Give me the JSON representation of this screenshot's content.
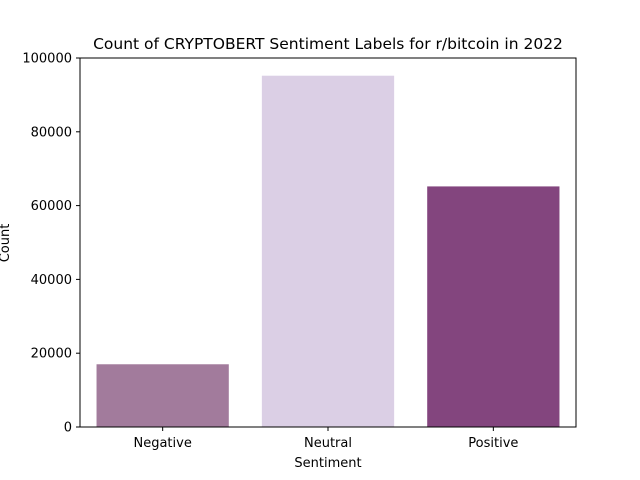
{
  "chart_data": {
    "type": "bar",
    "title": "Count of CRYPTOBERT Sentiment Labels for r/bitcoin in 2022",
    "xlabel": "Sentiment",
    "ylabel": "Count",
    "categories": [
      "Negative",
      "Neutral",
      "Positive"
    ],
    "values": [
      17000,
      95200,
      65200
    ],
    "colors": [
      "#a27b9c",
      "#dbcfe5",
      "#83457e"
    ],
    "ylim": [
      0,
      100000
    ],
    "yticks": [
      0,
      20000,
      40000,
      60000,
      80000,
      100000
    ],
    "grid": false,
    "legend": "none"
  }
}
